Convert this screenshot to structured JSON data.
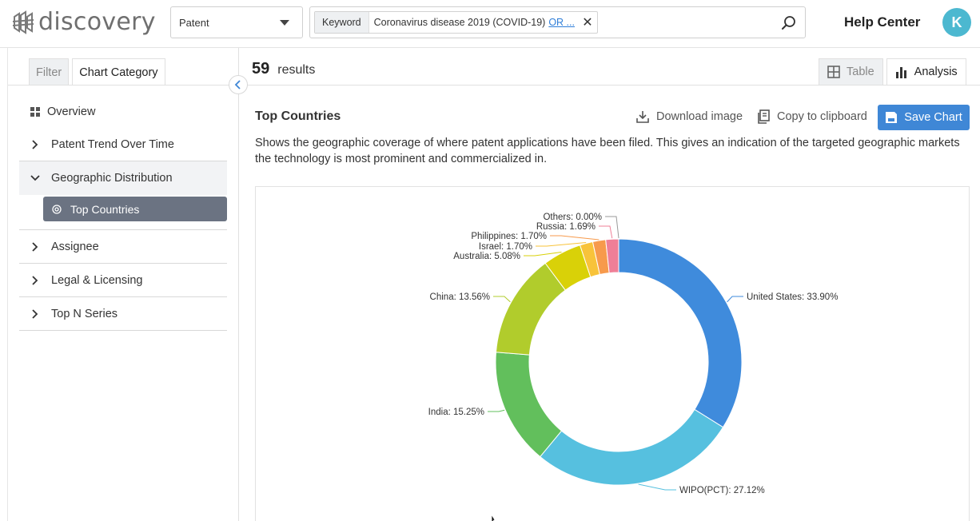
{
  "app": {
    "logo_text": "discovery"
  },
  "header": {
    "type_select": "Patent",
    "chip_type": "Keyword",
    "chip_value": "Coronavirus disease 2019 (COVID-19)",
    "chip_or": "OR ...",
    "help": "Help Center",
    "avatar": "K"
  },
  "sidebar": {
    "tabs": [
      "Filter",
      "Chart Category"
    ],
    "items": [
      {
        "label": "Overview"
      },
      {
        "label": "Patent Trend Over Time"
      },
      {
        "label": "Geographic Distribution"
      },
      {
        "label": "Assignee"
      },
      {
        "label": "Legal & Licensing"
      },
      {
        "label": "Top N Series"
      }
    ],
    "sub_items": [
      {
        "label": "Top Countries"
      }
    ]
  },
  "main": {
    "results_count": "59",
    "results_label": "results",
    "view_tabs": [
      "Table",
      "Analysis"
    ],
    "section_title": "Top Countries",
    "actions": {
      "download": "Download image",
      "copy": "Copy to clipboard",
      "save": "Save Chart"
    },
    "description": "Shows the geographic coverage of where patent applications have been filed. This gives an indication of the targeted geographic markets the technology is most prominent and commercialized in."
  },
  "chart_data": {
    "type": "pie",
    "donut": true,
    "slices": [
      {
        "name": "United States",
        "value": 33.9,
        "label": "United States: 33.90%",
        "color": "#3f8bdc"
      },
      {
        "name": "WIPO(PCT)",
        "value": 27.12,
        "label": "WIPO(PCT): 27.12%",
        "color": "#56c0df"
      },
      {
        "name": "India",
        "value": 15.25,
        "label": "India: 15.25%",
        "color": "#62bf5c"
      },
      {
        "name": "China",
        "value": 13.56,
        "label": "China: 13.56%",
        "color": "#b1cc2c"
      },
      {
        "name": "Australia",
        "value": 5.08,
        "label": "Australia: 5.08%",
        "color": "#d9d108"
      },
      {
        "name": "Israel",
        "value": 1.7,
        "label": "Israel: 1.70%",
        "color": "#f8c33a"
      },
      {
        "name": "Philippines",
        "value": 1.7,
        "label": "Philippines: 1.70%",
        "color": "#f79a4c"
      },
      {
        "name": "Russia",
        "value": 1.69,
        "label": "Russia: 1.69%",
        "color": "#ef7f97"
      },
      {
        "name": "Others",
        "value": 0.0,
        "label": "Others: 0.00%",
        "color": "#b0b0b0"
      }
    ]
  }
}
